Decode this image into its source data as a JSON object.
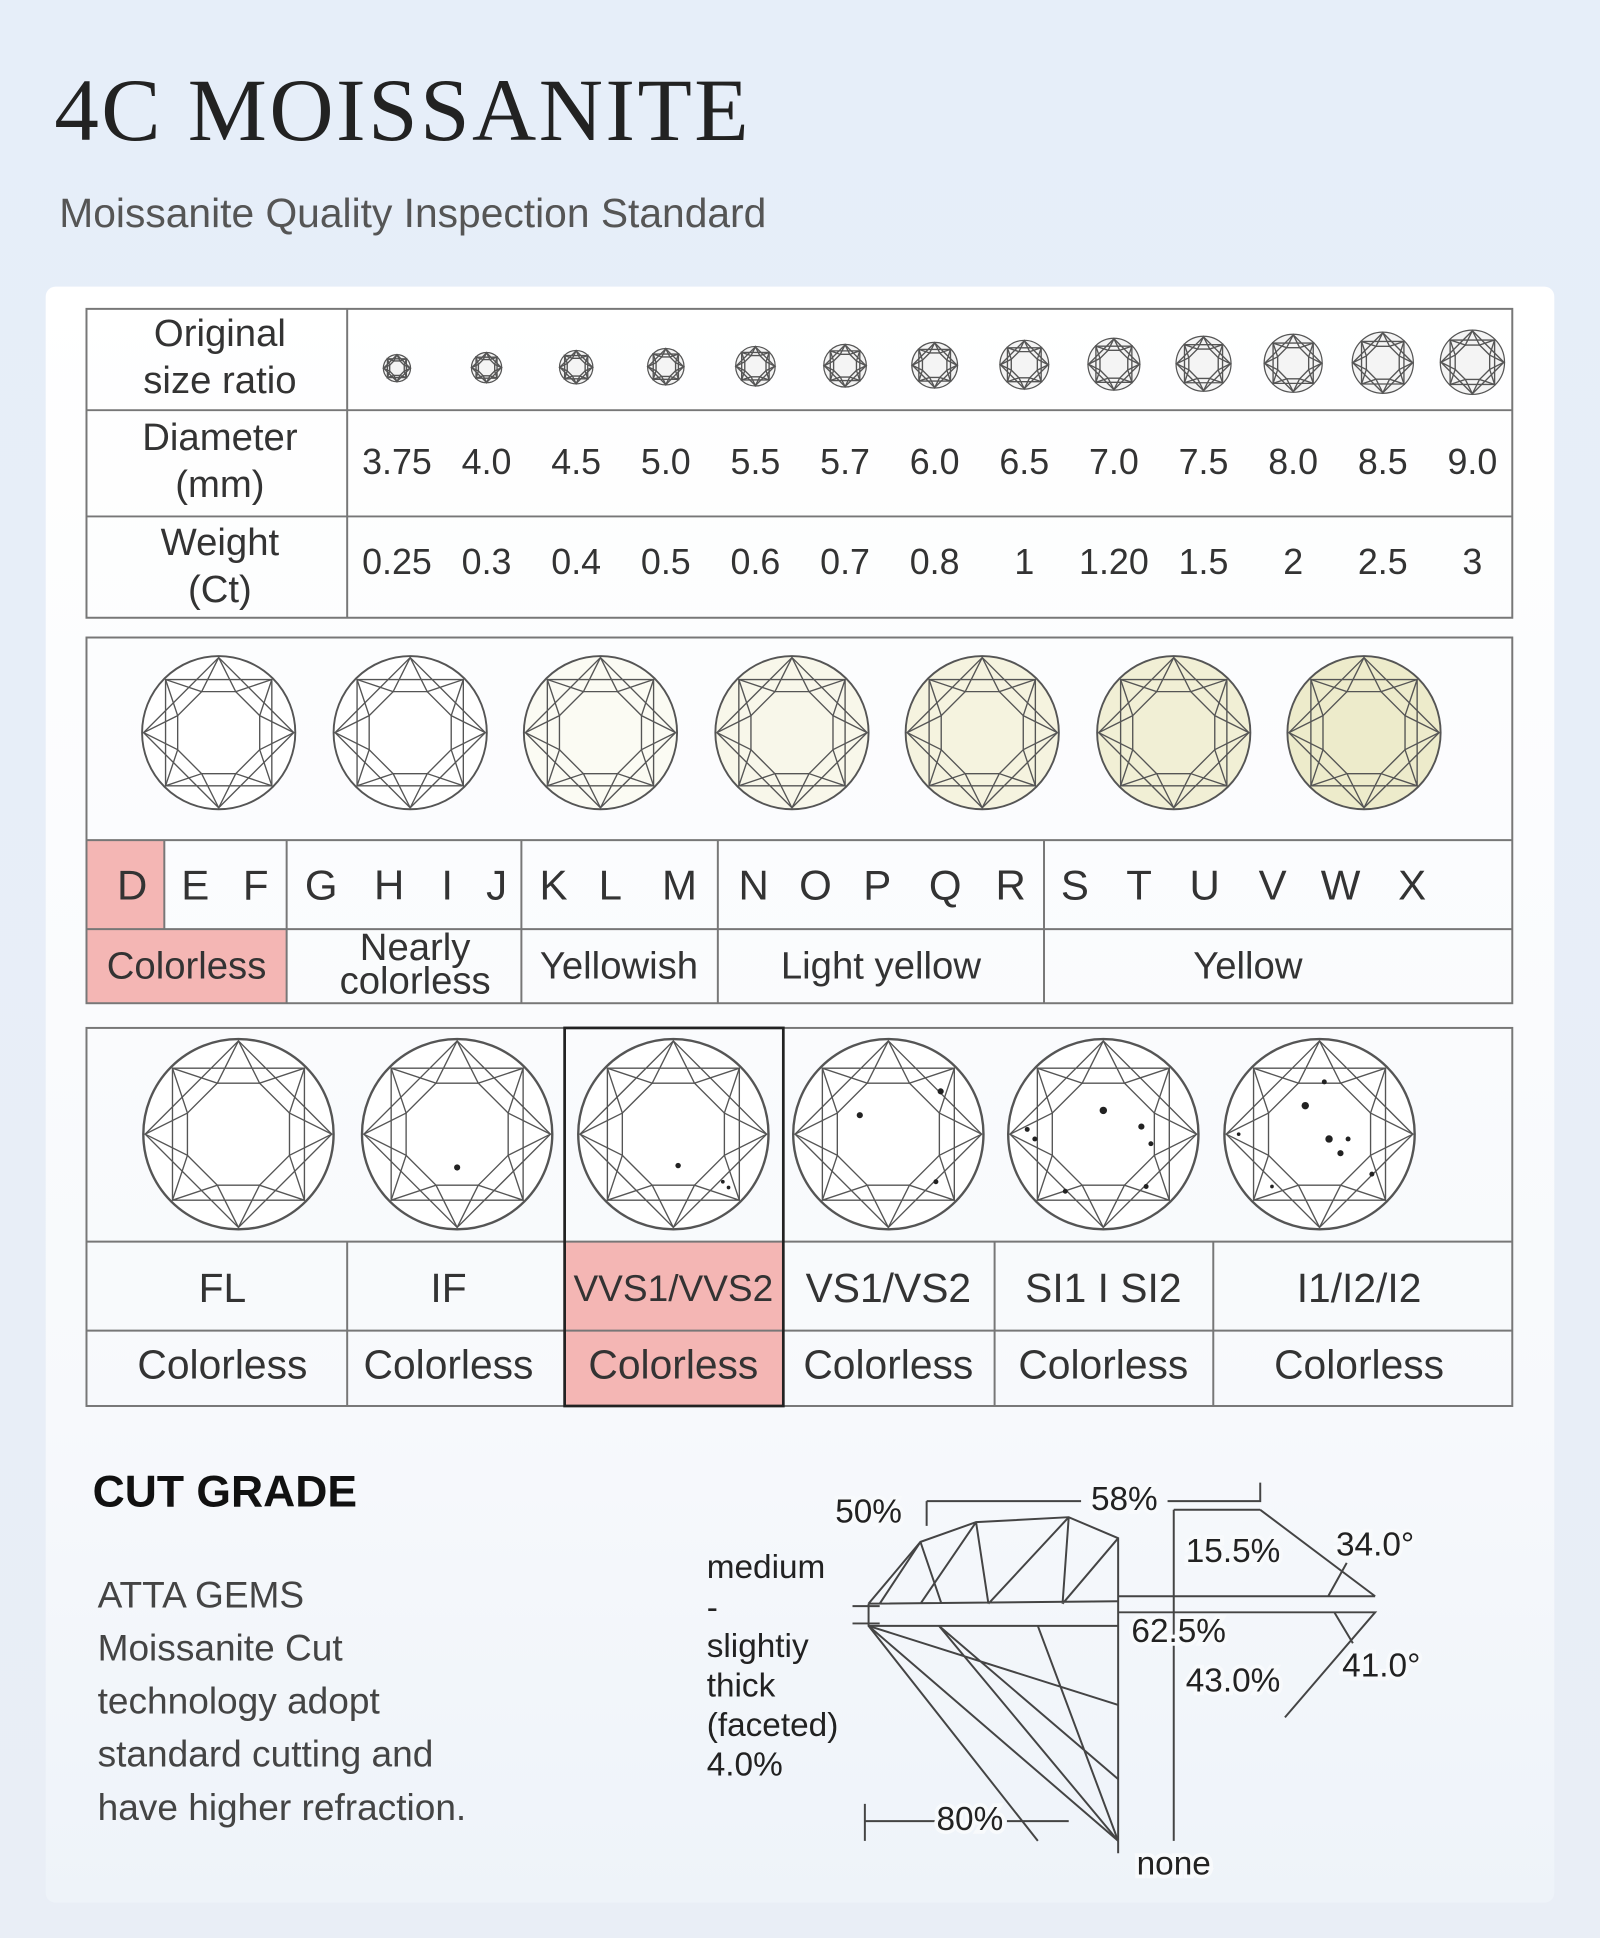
{
  "header": {
    "title": "4C MOISSANITE",
    "subtitle": "Moissanite Quality Inspection Standard"
  },
  "size_table": {
    "row_labels": [
      [
        "Original",
        "size ratio"
      ],
      [
        "Diameter",
        "(mm)"
      ],
      [
        "Weight",
        "(Ct)"
      ]
    ],
    "diameters": [
      "3.75",
      "4.0",
      "4.5",
      "5.0",
      "5.5",
      "5.7",
      "6.0",
      "6.5",
      "7.0",
      "7.5",
      "8.0",
      "8.5",
      "9.0"
    ],
    "weights": [
      "0.25",
      "0.3",
      "0.4",
      "0.5",
      "0.6",
      "0.7",
      "0.8",
      "1",
      "1.20",
      "1.5",
      "2",
      "2.5",
      "3"
    ]
  },
  "color_grade": {
    "groups": [
      {
        "label": [
          "Colorless"
        ],
        "grades": [
          "D",
          "E",
          "F"
        ]
      },
      {
        "label": [
          "Nearly",
          "colorless"
        ],
        "grades": [
          "G",
          "H",
          "I",
          "J"
        ]
      },
      {
        "label": [
          "Yellowish"
        ],
        "grades": [
          "K",
          "L",
          "M"
        ]
      },
      {
        "label": [
          "Light yellow"
        ],
        "grades": [
          "N",
          "O",
          "P",
          "Q",
          "R"
        ]
      },
      {
        "label": [
          "Yellow"
        ],
        "grades": [
          "S",
          "T",
          "U",
          "V",
          "W",
          "X"
        ]
      }
    ]
  },
  "clarity_grade": {
    "columns": [
      {
        "grade": "FL",
        "color": "Colorless"
      },
      {
        "grade": "IF",
        "color": "Colorless"
      },
      {
        "grade": "VVS1/VVS2",
        "color": "Colorless"
      },
      {
        "grade": "VS1/VS2",
        "color": "Colorless"
      },
      {
        "grade": "SI1 I SI2",
        "color": "Colorless"
      },
      {
        "grade": "I1/I2/I2",
        "color": "Colorless"
      }
    ]
  },
  "cut_grade": {
    "title": "CUT GRADE",
    "description": [
      "ATTA GEMS",
      "Moissanite Cut",
      "technology adopt",
      "standard cutting and",
      "have higher refraction."
    ],
    "diagram": {
      "table": "50%",
      "crown_width": "58%",
      "crown_height": "15.5%",
      "crown_angle": "34.0°",
      "total_depth": "62.5%",
      "pavilion_depth": "43.0%",
      "pavilion_angle": "41.0°",
      "lower_half": "80%",
      "culet": "none",
      "girdle": [
        "medium",
        "-",
        "slightiy",
        "thick",
        "(faceted)",
        "4.0%"
      ]
    }
  }
}
